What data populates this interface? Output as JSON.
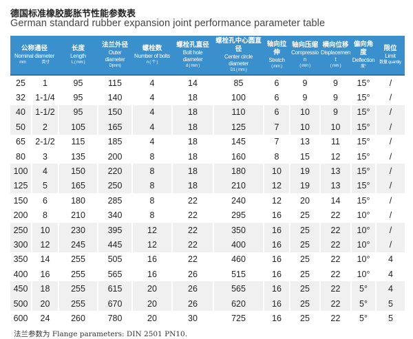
{
  "title_zh": "德国标准橡胶膨胀节性能参数表",
  "title_en": "German standard rubber expansion joint performance parameter table",
  "header": [
    {
      "zh": "公称通径",
      "en": "Nominal diameter",
      "un": "mm　　　　英寸"
    },
    {
      "zh": "长度",
      "en": "Length",
      "un": "L ( mm )"
    },
    {
      "zh": "法兰外径",
      "en": "Outer diameter",
      "un": "D(mm)"
    },
    {
      "zh": "螺栓数",
      "en": "Number of bolts",
      "un": "n ( 个 )"
    },
    {
      "zh": "螺栓孔直径",
      "en": "Bolt hole diameter",
      "un": "d ( mm )"
    },
    {
      "zh": "螺栓孔中心圆直径",
      "en": "Center circle diameter",
      "un": "D1 ( mm )"
    },
    {
      "zh": "轴向拉伸",
      "en": "Stretch",
      "un": "( mm )"
    },
    {
      "zh": "轴向压缩",
      "en": "Compression",
      "un": "( mm )"
    },
    {
      "zh": "横向位移",
      "en": "Displacement",
      "un": "( mm )"
    },
    {
      "zh": "偏向角度",
      "en": "Deflection",
      "un": "度°"
    },
    {
      "zh": "限位",
      "en": "Limit",
      "un": "数量 quantity"
    }
  ],
  "rows": [
    [
      "25",
      "1",
      "95",
      "115",
      "4",
      "14",
      "85",
      "6",
      "9",
      "9",
      "15°",
      "/"
    ],
    [
      "32",
      "1-1/4",
      "95",
      "140",
      "4",
      "18",
      "100",
      "6",
      "9",
      "9",
      "15°",
      "/"
    ],
    [
      "40",
      "1-1/2",
      "95",
      "150",
      "4",
      "18",
      "110",
      "6",
      "10",
      "9",
      "15°",
      "/"
    ],
    [
      "50",
      "2",
      "105",
      "165",
      "4",
      "18",
      "125",
      "7",
      "10",
      "10",
      "15°",
      "/"
    ],
    [
      "65",
      "2-1/2",
      "115",
      "185",
      "4",
      "18",
      "145",
      "7",
      "13",
      "11",
      "15°",
      "/"
    ],
    [
      "80",
      "3",
      "135",
      "200",
      "8",
      "18",
      "160",
      "8",
      "15",
      "12",
      "15°",
      "/"
    ],
    [
      "100",
      "4",
      "150",
      "220",
      "8",
      "18",
      "180",
      "10",
      "19",
      "13",
      "15°",
      "/"
    ],
    [
      "125",
      "5",
      "165",
      "250",
      "8",
      "18",
      "210",
      "12",
      "19",
      "13",
      "15°",
      "/"
    ],
    [
      "150",
      "6",
      "180",
      "285",
      "8",
      "22",
      "240",
      "12",
      "20",
      "14",
      "15°",
      "/"
    ],
    [
      "200",
      "8",
      "210",
      "340",
      "8",
      "22",
      "295",
      "16",
      "25",
      "22",
      "10°",
      "/"
    ],
    [
      "250",
      "10",
      "230",
      "395",
      "12",
      "22",
      "350",
      "16",
      "25",
      "22",
      "10°",
      "/"
    ],
    [
      "300",
      "12",
      "245",
      "445",
      "12",
      "22",
      "400",
      "16",
      "25",
      "22",
      "10°",
      "/"
    ],
    [
      "350",
      "14",
      "255",
      "505",
      "16",
      "22",
      "460",
      "16",
      "25",
      "22",
      "10°",
      "4"
    ],
    [
      "400",
      "16",
      "255",
      "565",
      "16",
      "26",
      "515",
      "16",
      "25",
      "22",
      "10°",
      "4"
    ],
    [
      "450",
      "18",
      "255",
      "615",
      "20",
      "26",
      "565",
      "16",
      "25",
      "22",
      "5°",
      "4"
    ],
    [
      "500",
      "20",
      "255",
      "670",
      "20",
      "26",
      "620",
      "16",
      "25",
      "22",
      "5°",
      "5"
    ],
    [
      "600",
      "24",
      "260",
      "780",
      "20",
      "30",
      "725",
      "16",
      "25",
      "22",
      "5°",
      "5"
    ]
  ],
  "footnote": "法兰参数为 Flange parameters: DIN 2501 PN10.",
  "colors": {
    "header_bg": "#3a8fcd",
    "band": "#f0f0f0"
  }
}
